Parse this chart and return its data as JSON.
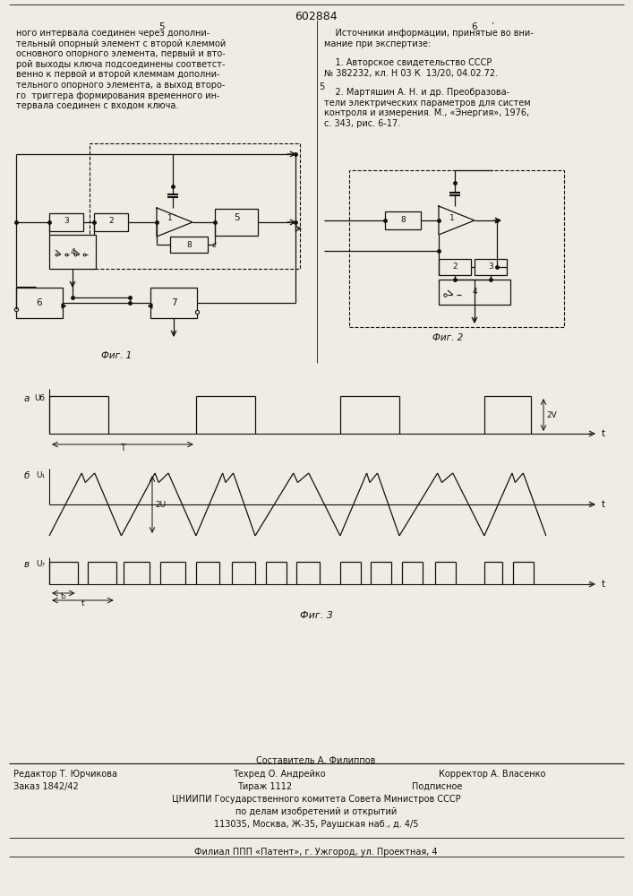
{
  "page_width": 7.07,
  "page_height": 10.0,
  "bg_color": "#f0ece4",
  "patent_number": "602884",
  "col5_text": "ного интервала соединен через дополни-\nтельный опорный элемент с второй клеммой\nосновного опорного элемента, первый и вто-\nрой выходы ключа подсоединены соответст-\nвенно к первой и второй клеммам дополни-\nтельного опорного элемента, а выход второ-\nго  триггера формирования временного ин-\nтервала соединен с входом ключа.",
  "col6_text_title": "    Источники информации, принятые во вни-\nмание при экспертизе:",
  "col6_ref1": "    1. Авторское свидетельство СССР\n№ 382232, кл. Н 03 К  13/20, 04.02.72.",
  "col6_ref2": "    2. Мартяшин А. Н. и др. Преобразова-\nтели электрических параметров для систем\nконтроля и измерения. М., «Энергия», 1976,\nс. 343, рис. 6-17.",
  "footer_composer": "Составитель А. Филиппов",
  "footer_editor": "Редактор Т. Юрчикова",
  "footer_tech": "Техред О. Андрейко",
  "footer_corrector": "Корректор А. Власенко",
  "footer_order": "Заказ 1842/42",
  "footer_tirazh": "Тираж 1112",
  "footer_podpisnoe": "Подписное",
  "footer_org": "ЦНИИПИ Государственного комитета Совета Министров СССР",
  "footer_dept": "по делам изобретений и открытий",
  "footer_addr": "113035, Москва, Ж-35, Раушская наб., д. 4/5",
  "footer_filial": "Филиал ППП «Патент», г. Ужгород, ул. Проектная, 4",
  "lc": "#111111",
  "tc": "#111111"
}
